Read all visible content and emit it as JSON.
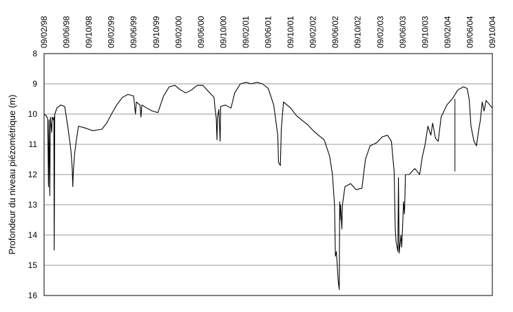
{
  "chart_data": {
    "type": "line",
    "title": "",
    "xlabel": "",
    "ylabel": "Profondeur du niveau piézométrique (m)",
    "y_axis_inverted": true,
    "x_axis_position": "top",
    "ylim": [
      8,
      16
    ],
    "y_ticks": [
      8,
      9,
      10,
      11,
      12,
      13,
      14,
      15,
      16
    ],
    "grid": {
      "horizontal": true,
      "vertical": false
    },
    "x_ticks": [
      "09/02/98",
      "09/06/98",
      "09/10/98",
      "09/02/99",
      "09/06/99",
      "09/10/99",
      "09/02/00",
      "09/06/00",
      "09/10/00",
      "09/02/01",
      "09/06/01",
      "09/10/01",
      "09/02/02",
      "09/06/02",
      "09/10/02",
      "09/02/03",
      "09/06/03",
      "09/10/03",
      "09/02/04",
      "09/06/04",
      "09/10/04"
    ],
    "xlim": [
      "1998-02-09",
      "2004-10-09"
    ],
    "series": [
      {
        "name": "",
        "color": "#000000",
        "points": [
          [
            "1998-02-09",
            10.0
          ],
          [
            "1998-02-20",
            10.05
          ],
          [
            "1998-03-01",
            10.15
          ],
          [
            "1998-03-05",
            12.4
          ],
          [
            "1998-03-08",
            10.2
          ],
          [
            "1998-03-12",
            12.7
          ],
          [
            "1998-03-15",
            10.1
          ],
          [
            "1998-03-22",
            10.6
          ],
          [
            "1998-03-25",
            10.1
          ],
          [
            "1998-04-01",
            10.2
          ],
          [
            "1998-04-03",
            10.1
          ],
          [
            "1998-04-05",
            14.5
          ],
          [
            "1998-04-08",
            10.0
          ],
          [
            "1998-04-20",
            9.8
          ],
          [
            "1998-05-10",
            9.7
          ],
          [
            "1998-06-01",
            9.75
          ],
          [
            "1998-06-20",
            10.5
          ],
          [
            "1998-07-05",
            11.2
          ],
          [
            "1998-07-12",
            11.8
          ],
          [
            "1998-07-15",
            12.4
          ],
          [
            "1998-07-18",
            11.9
          ],
          [
            "1998-07-25",
            11.3
          ],
          [
            "1998-08-05",
            10.8
          ],
          [
            "1998-08-15",
            10.4
          ],
          [
            "1998-09-15",
            10.45
          ],
          [
            "1998-11-01",
            10.55
          ],
          [
            "1998-12-20",
            10.5
          ],
          [
            "1999-01-15",
            10.3
          ],
          [
            "1999-02-10",
            10.0
          ],
          [
            "1999-03-10",
            9.7
          ],
          [
            "1999-04-10",
            9.45
          ],
          [
            "1999-05-10",
            9.35
          ],
          [
            "1999-06-10",
            9.4
          ],
          [
            "1999-06-20",
            10.0
          ],
          [
            "1999-06-25",
            9.6
          ],
          [
            "1999-07-15",
            9.7
          ],
          [
            "1999-07-20",
            10.1
          ],
          [
            "1999-07-25",
            9.7
          ],
          [
            "1999-08-20",
            9.8
          ],
          [
            "1999-09-20",
            9.9
          ],
          [
            "1999-10-20",
            9.95
          ],
          [
            "1999-11-20",
            9.4
          ],
          [
            "1999-12-20",
            9.1
          ],
          [
            "2000-01-20",
            9.05
          ],
          [
            "2000-02-20",
            9.2
          ],
          [
            "2000-03-20",
            9.3
          ],
          [
            "2000-04-20",
            9.2
          ],
          [
            "2000-05-20",
            9.05
          ],
          [
            "2000-06-20",
            9.05
          ],
          [
            "2000-07-20",
            9.25
          ],
          [
            "2000-08-20",
            9.45
          ],
          [
            "2000-08-25",
            9.8
          ],
          [
            "2000-09-01",
            10.15
          ],
          [
            "2000-09-05",
            10.85
          ],
          [
            "2000-09-08",
            10.1
          ],
          [
            "2000-09-15",
            9.85
          ],
          [
            "2000-09-22",
            10.9
          ],
          [
            "2000-09-25",
            9.75
          ],
          [
            "2000-10-20",
            9.7
          ],
          [
            "2000-11-20",
            9.8
          ],
          [
            "2000-12-10",
            9.3
          ],
          [
            "2001-01-10",
            9.0
          ],
          [
            "2001-02-10",
            8.95
          ],
          [
            "2001-03-10",
            9.0
          ],
          [
            "2001-04-10",
            8.95
          ],
          [
            "2001-05-10",
            9.0
          ],
          [
            "2001-06-10",
            9.15
          ],
          [
            "2001-07-10",
            9.7
          ],
          [
            "2001-08-01",
            10.7
          ],
          [
            "2001-08-05",
            11.6
          ],
          [
            "2001-08-15",
            11.7
          ],
          [
            "2001-08-20",
            10.5
          ],
          [
            "2001-09-01",
            9.6
          ],
          [
            "2001-10-10",
            9.8
          ],
          [
            "2001-11-10",
            10.05
          ],
          [
            "2001-12-10",
            10.2
          ],
          [
            "2002-01-10",
            10.35
          ],
          [
            "2002-02-10",
            10.55
          ],
          [
            "2002-03-10",
            10.7
          ],
          [
            "2002-04-10",
            10.85
          ],
          [
            "2002-05-10",
            11.4
          ],
          [
            "2002-05-25",
            12.0
          ],
          [
            "2002-06-05",
            13.0
          ],
          [
            "2002-06-10",
            14.7
          ],
          [
            "2002-06-15",
            14.55
          ],
          [
            "2002-06-25",
            15.5
          ],
          [
            "2002-07-01",
            15.8
          ],
          [
            "2002-07-03",
            12.9
          ],
          [
            "2002-07-05",
            13.5
          ],
          [
            "2002-07-08",
            13.0
          ],
          [
            "2002-07-15",
            13.8
          ],
          [
            "2002-07-18",
            13.0
          ],
          [
            "2002-08-01",
            12.4
          ],
          [
            "2002-09-01",
            12.3
          ],
          [
            "2002-10-01",
            12.5
          ],
          [
            "2002-11-01",
            12.45
          ],
          [
            "2002-11-20",
            11.5
          ],
          [
            "2002-12-15",
            11.05
          ],
          [
            "2003-01-20",
            10.95
          ],
          [
            "2003-02-20",
            10.75
          ],
          [
            "2003-03-20",
            10.7
          ],
          [
            "2003-04-10",
            10.9
          ],
          [
            "2003-04-25",
            11.9
          ],
          [
            "2003-05-01",
            13.8
          ],
          [
            "2003-05-05",
            14.2
          ],
          [
            "2003-05-15",
            14.55
          ],
          [
            "2003-05-18",
            12.1
          ],
          [
            "2003-05-22",
            14.6
          ],
          [
            "2003-06-01",
            14.0
          ],
          [
            "2003-06-05",
            14.4
          ],
          [
            "2003-06-15",
            12.9
          ],
          [
            "2003-06-20",
            13.3
          ],
          [
            "2003-06-25",
            12.0
          ],
          [
            "2003-07-15",
            12.0
          ],
          [
            "2003-08-15",
            11.8
          ],
          [
            "2003-09-10",
            12.0
          ],
          [
            "2003-09-25",
            11.4
          ],
          [
            "2003-10-10",
            11.0
          ],
          [
            "2003-10-25",
            10.4
          ],
          [
            "2003-11-10",
            10.7
          ],
          [
            "2003-11-20",
            10.3
          ],
          [
            "2003-12-05",
            10.8
          ],
          [
            "2003-12-20",
            10.9
          ],
          [
            "2004-01-05",
            10.1
          ],
          [
            "2004-02-05",
            9.7
          ],
          [
            "2004-03-05",
            9.5
          ],
          [
            "2004-04-05",
            9.2
          ],
          [
            "2004-05-05",
            9.1
          ],
          [
            "2004-05-25",
            9.15
          ],
          [
            "2004-06-05",
            9.5
          ],
          [
            "2004-06-15",
            10.4
          ],
          [
            "2004-07-01",
            10.9
          ],
          [
            "2004-07-15",
            11.05
          ],
          [
            "2004-07-25",
            10.6
          ],
          [
            "2004-08-05",
            10.2
          ],
          [
            "2004-08-15",
            9.6
          ],
          [
            "2004-08-25",
            9.9
          ],
          [
            "2004-09-05",
            9.55
          ],
          [
            "2004-10-09",
            9.8
          ]
        ],
        "spikes": [
          [
            "2004-03-20",
            9.5,
            11.9
          ]
        ]
      }
    ]
  }
}
